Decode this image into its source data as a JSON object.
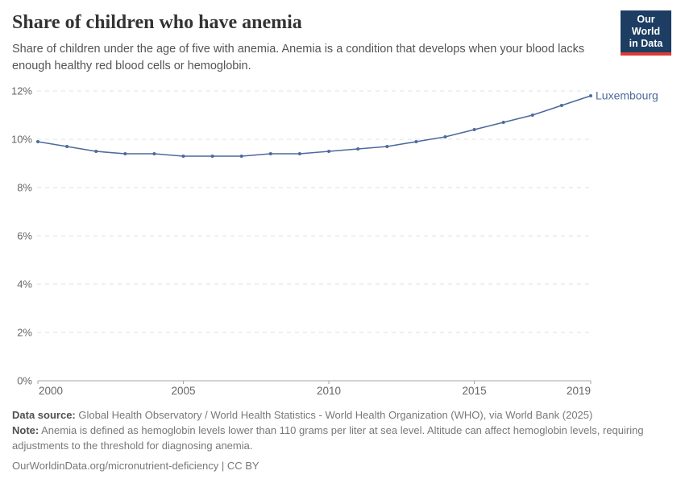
{
  "header": {
    "title": "Share of children who have anemia",
    "subtitle_line1": "Share of children under the age of five with anemia. Anemia is a condition that develops when your blood lacks",
    "subtitle_line2": "enough healthy red blood cells or hemoglobin."
  },
  "logo": {
    "line1": "Our World",
    "line2": "in Data"
  },
  "chart_data": {
    "type": "line",
    "title": "Share of children who have anemia",
    "x": [
      2000,
      2001,
      2002,
      2003,
      2004,
      2005,
      2006,
      2007,
      2008,
      2009,
      2010,
      2011,
      2012,
      2013,
      2014,
      2015,
      2016,
      2017,
      2018,
      2019
    ],
    "series": [
      {
        "name": "Luxembourg",
        "color": "#4C6A9C",
        "values": [
          9.9,
          9.7,
          9.5,
          9.4,
          9.4,
          9.3,
          9.3,
          9.3,
          9.4,
          9.4,
          9.5,
          9.6,
          9.7,
          9.9,
          10.1,
          10.4,
          10.7,
          11.0,
          11.4,
          11.8
        ]
      }
    ],
    "xlabel": "",
    "ylabel": "",
    "ylim": [
      0,
      12
    ],
    "yticks": [
      0,
      2,
      4,
      6,
      8,
      10,
      12
    ],
    "ytick_suffix": "%",
    "xticks": [
      2000,
      2005,
      2010,
      2015,
      2019
    ],
    "grid": "horizontal-dashed",
    "legend": "line-end-label"
  },
  "footer": {
    "data_source_label": "Data source:",
    "data_source_text": "Global Health Observatory / World Health Statistics - World Health Organization (WHO), via World Bank (2025)",
    "note_label": "Note:",
    "note_line1": "Anemia is defined as hemoglobin levels lower than 110 grams per liter at sea level. Altitude can affect hemoglobin levels, requiring",
    "note_line2": "adjustments to the threshold for diagnosing anemia.",
    "link_text": "OurWorldinData.org/micronutrient-deficiency | CC BY"
  },
  "theme": {
    "line_color": "#4C6A9C",
    "grid_color": "#e2e2e2",
    "axis_color": "#a5a5a5",
    "tick_label_color": "#666666",
    "logo_bg": "#1d3d63",
    "logo_stripe": "#dc3b33"
  }
}
